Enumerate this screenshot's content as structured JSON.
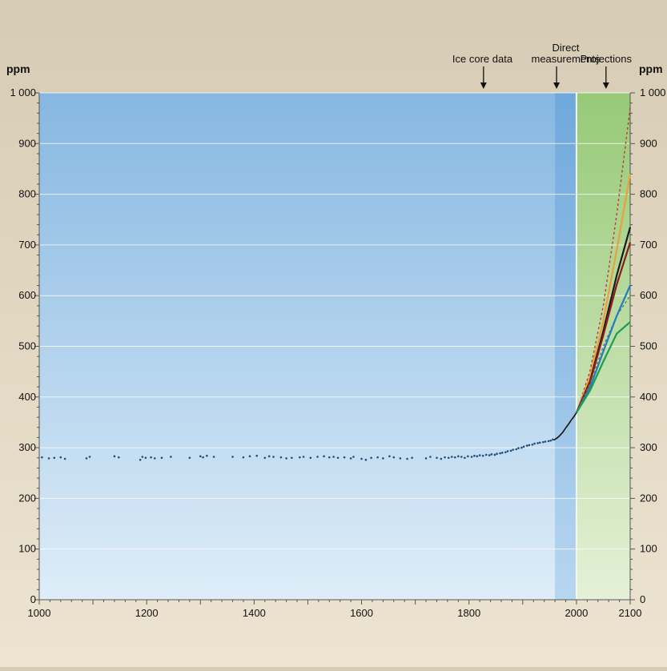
{
  "chart_data": {
    "type": "scatter",
    "title": "",
    "xlabel": "",
    "ylabel": "ppm",
    "ylabel_right": "ppm",
    "xlim": [
      1000,
      2100
    ],
    "ylim": [
      0,
      1000
    ],
    "x_ticks": [
      "1000",
      "1200",
      "1400",
      "1600",
      "1800",
      "2000",
      "2100"
    ],
    "x_tick_values": [
      1000,
      1200,
      1400,
      1600,
      1800,
      2000,
      2100
    ],
    "y_ticks": [
      "0",
      "100",
      "200",
      "300",
      "400",
      "500",
      "600",
      "700",
      "800",
      "900",
      "1 000"
    ],
    "y_tick_values": [
      0,
      100,
      200,
      300,
      400,
      500,
      600,
      700,
      800,
      900,
      1000
    ],
    "grid": true,
    "regions": [
      {
        "name": "Ice core data",
        "x_range": [
          1000,
          1960
        ],
        "color": "#8bbde3"
      },
      {
        "name": "Direct measurements",
        "x_range": [
          1960,
          2000
        ],
        "color": "#7fb7e6"
      },
      {
        "name": "Projections",
        "x_range": [
          2000,
          2100
        ],
        "color": "#a8d48c"
      }
    ],
    "annotations": [
      {
        "lines": [
          "Ice core data"
        ],
        "x": 1825
      },
      {
        "lines": [
          "Direct",
          "measurements"
        ],
        "x": 1980
      },
      {
        "lines": [
          "Projections"
        ],
        "x": 2055
      }
    ],
    "colors": {
      "ice_core_points": "#1f4f7a",
      "measurement_line": "#111111"
    },
    "ice_core_points": [
      [
        1005,
        281
      ],
      [
        1018,
        279
      ],
      [
        1028,
        280
      ],
      [
        1040,
        281
      ],
      [
        1048,
        278
      ],
      [
        1088,
        279
      ],
      [
        1094,
        282
      ],
      [
        1140,
        283
      ],
      [
        1148,
        281
      ],
      [
        1188,
        276
      ],
      [
        1192,
        282
      ],
      [
        1198,
        280
      ],
      [
        1208,
        281
      ],
      [
        1215,
        279
      ],
      [
        1228,
        280
      ],
      [
        1245,
        282
      ],
      [
        1280,
        280
      ],
      [
        1300,
        283
      ],
      [
        1305,
        281
      ],
      [
        1312,
        284
      ],
      [
        1325,
        282
      ],
      [
        1360,
        282
      ],
      [
        1380,
        281
      ],
      [
        1392,
        283
      ],
      [
        1405,
        284
      ],
      [
        1420,
        280
      ],
      [
        1428,
        283
      ],
      [
        1436,
        282
      ],
      [
        1450,
        281
      ],
      [
        1460,
        279
      ],
      [
        1470,
        280
      ],
      [
        1485,
        281
      ],
      [
        1492,
        282
      ],
      [
        1505,
        280
      ],
      [
        1518,
        282
      ],
      [
        1530,
        283
      ],
      [
        1540,
        281
      ],
      [
        1548,
        282
      ],
      [
        1556,
        280
      ],
      [
        1568,
        281
      ],
      [
        1580,
        279
      ],
      [
        1585,
        282
      ],
      [
        1600,
        278
      ],
      [
        1608,
        276
      ],
      [
        1618,
        280
      ],
      [
        1630,
        281
      ],
      [
        1640,
        279
      ],
      [
        1652,
        283
      ],
      [
        1660,
        281
      ],
      [
        1672,
        279
      ],
      [
        1685,
        278
      ],
      [
        1694,
        280
      ],
      [
        1720,
        279
      ],
      [
        1728,
        282
      ],
      [
        1740,
        280
      ],
      [
        1748,
        278
      ],
      [
        1755,
        281
      ],
      [
        1762,
        280
      ],
      [
        1768,
        282
      ],
      [
        1774,
        281
      ],
      [
        1780,
        283
      ],
      [
        1786,
        282
      ],
      [
        1792,
        280
      ],
      [
        1798,
        283
      ],
      [
        1805,
        282
      ],
      [
        1810,
        284
      ],
      [
        1815,
        283
      ],
      [
        1820,
        285
      ],
      [
        1826,
        284
      ],
      [
        1832,
        286
      ],
      [
        1838,
        285
      ],
      [
        1842,
        287
      ],
      [
        1848,
        286
      ],
      [
        1852,
        288
      ],
      [
        1858,
        289
      ],
      [
        1862,
        290
      ],
      [
        1868,
        291
      ],
      [
        1872,
        293
      ],
      [
        1878,
        294
      ],
      [
        1882,
        296
      ],
      [
        1888,
        297
      ],
      [
        1892,
        299
      ],
      [
        1898,
        300
      ],
      [
        1902,
        302
      ],
      [
        1908,
        304
      ],
      [
        1912,
        305
      ],
      [
        1918,
        306
      ],
      [
        1922,
        308
      ],
      [
        1928,
        309
      ],
      [
        1932,
        310
      ],
      [
        1938,
        311
      ],
      [
        1942,
        312
      ],
      [
        1948,
        313
      ],
      [
        1952,
        314
      ],
      [
        1956,
        316
      ]
    ],
    "measurements": {
      "x": [
        1958,
        1965,
        1970,
        1975,
        1980,
        1985,
        1990,
        1995,
        2000
      ],
      "y": [
        315,
        320,
        325,
        331,
        339,
        346,
        354,
        361,
        369
      ]
    },
    "projections": [
      {
        "color": "#c0392b",
        "dashed": true,
        "x": [
          2000,
          2025,
          2050,
          2075,
          2100
        ],
        "y": [
          369,
          450,
          580,
          760,
          970
        ]
      },
      {
        "color": "#e9a23b",
        "dashed": false,
        "x": [
          2000,
          2025,
          2050,
          2075,
          2100
        ],
        "y": [
          369,
          440,
          550,
          690,
          840
        ]
      },
      {
        "color": "#1a1a1a",
        "dashed": false,
        "x": [
          2000,
          2025,
          2050,
          2075,
          2100
        ],
        "y": [
          369,
          430,
          530,
          640,
          735
        ]
      },
      {
        "color": "#8b1a1a",
        "dashed": false,
        "x": [
          2000,
          2025,
          2050,
          2075,
          2100
        ],
        "y": [
          369,
          428,
          522,
          622,
          705
        ]
      },
      {
        "color": "#6f6f6f",
        "dashed": true,
        "x": [
          2000,
          2025,
          2050,
          2075,
          2100
        ],
        "y": [
          369,
          425,
          500,
          560,
          600
        ]
      },
      {
        "color": "#1f7fbf",
        "dashed": false,
        "x": [
          2000,
          2025,
          2050,
          2075,
          2100
        ],
        "y": [
          369,
          418,
          490,
          560,
          620
        ]
      },
      {
        "color": "#1f9d4a",
        "dashed": false,
        "x": [
          2000,
          2025,
          2050,
          2075,
          2100
        ],
        "y": [
          369,
          412,
          470,
          525,
          548
        ]
      }
    ]
  }
}
